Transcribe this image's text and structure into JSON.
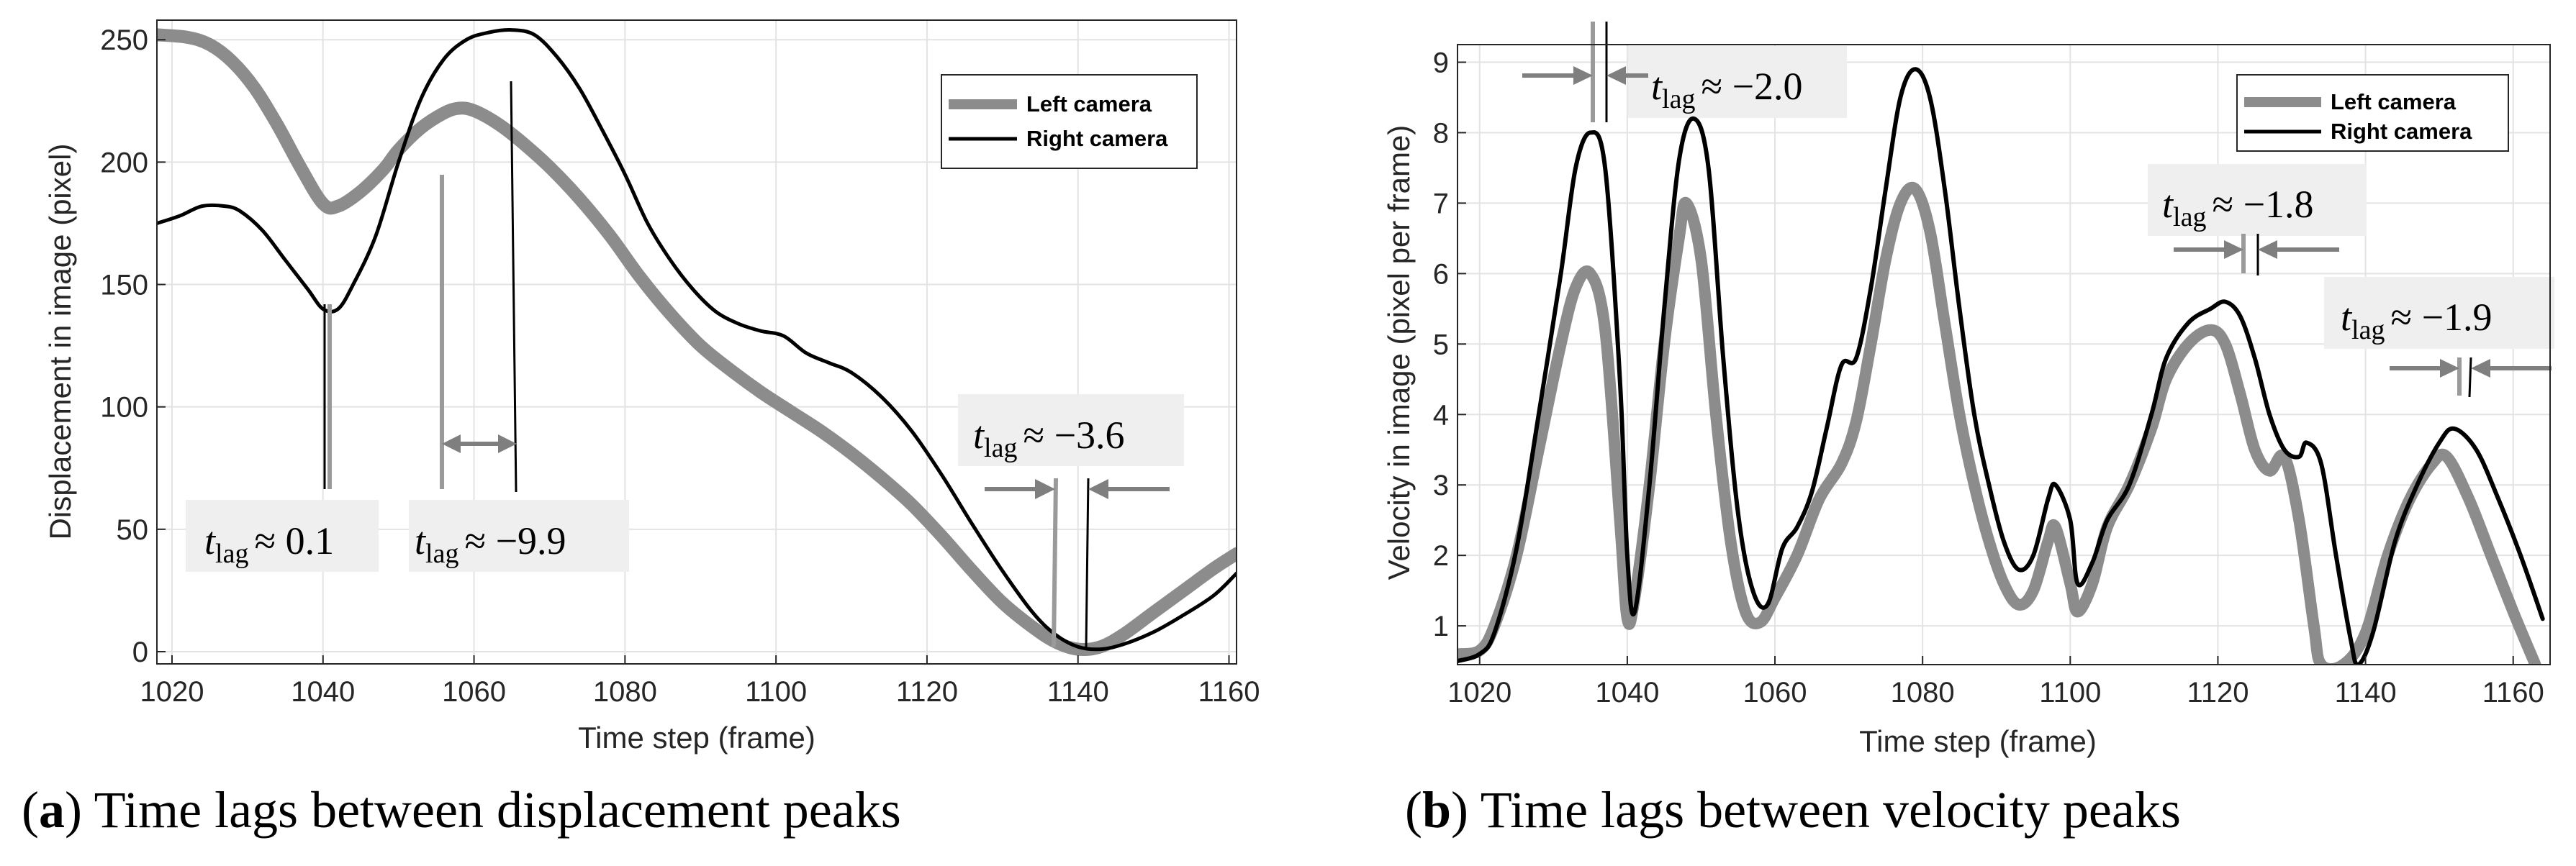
{
  "chart_data": [
    {
      "id": "a",
      "type": "line",
      "title": "",
      "caption": {
        "letter": "a",
        "text": "Time lags between displacement peaks"
      },
      "xlabel": "Time step (frame)",
      "ylabel": "Displacement in image (pixel)",
      "xlim": [
        1018,
        1161
      ],
      "ylim": [
        -5,
        258
      ],
      "xticks": [
        1020,
        1040,
        1060,
        1080,
        1100,
        1120,
        1140,
        1160
      ],
      "yticks": [
        0,
        50,
        100,
        150,
        200,
        250
      ],
      "grid": true,
      "legend_position": "top-right",
      "series": [
        {
          "name": "Left camera",
          "color": "#8c8c8c",
          "points": [
            [
              1018,
              252
            ],
            [
              1022,
              251
            ],
            [
              1025,
              248
            ],
            [
              1028,
              241
            ],
            [
              1031,
              230
            ],
            [
              1034,
              215
            ],
            [
              1037,
              198
            ],
            [
              1040,
              183
            ],
            [
              1042,
              182
            ],
            [
              1045,
              188
            ],
            [
              1048,
              197
            ],
            [
              1050,
              205
            ],
            [
              1053,
              214
            ],
            [
              1056,
              220
            ],
            [
              1058,
              222
            ],
            [
              1060,
              221
            ],
            [
              1063,
              216
            ],
            [
              1066,
              209
            ],
            [
              1070,
              198
            ],
            [
              1074,
              185
            ],
            [
              1078,
              170
            ],
            [
              1082,
              153
            ],
            [
              1086,
              138
            ],
            [
              1090,
              125
            ],
            [
              1094,
              115
            ],
            [
              1098,
              106
            ],
            [
              1102,
              98
            ],
            [
              1106,
              90
            ],
            [
              1110,
              81
            ],
            [
              1114,
              71
            ],
            [
              1118,
              60
            ],
            [
              1122,
              47
            ],
            [
              1126,
              33
            ],
            [
              1130,
              20
            ],
            [
              1134,
              10
            ],
            [
              1137,
              4
            ],
            [
              1140,
              1
            ],
            [
              1143,
              2
            ],
            [
              1146,
              7
            ],
            [
              1150,
              16
            ],
            [
              1154,
              25
            ],
            [
              1158,
              34
            ],
            [
              1161,
              40
            ]
          ]
        },
        {
          "name": "Right camera",
          "color": "#000000",
          "points": [
            [
              1018,
              175
            ],
            [
              1021,
              178
            ],
            [
              1024,
              182
            ],
            [
              1027,
              182
            ],
            [
              1029,
              180
            ],
            [
              1032,
              172
            ],
            [
              1035,
              160
            ],
            [
              1038,
              148
            ],
            [
              1040,
              140
            ],
            [
              1042,
              140
            ],
            [
              1044,
              150
            ],
            [
              1047,
              170
            ],
            [
              1050,
              200
            ],
            [
              1053,
              226
            ],
            [
              1056,
              242
            ],
            [
              1059,
              250
            ],
            [
              1062,
              253
            ],
            [
              1065,
              254
            ],
            [
              1068,
              252
            ],
            [
              1071,
              243
            ],
            [
              1074,
              230
            ],
            [
              1077,
              213
            ],
            [
              1080,
              195
            ],
            [
              1083,
              175
            ],
            [
              1086,
              160
            ],
            [
              1089,
              148
            ],
            [
              1092,
              139
            ],
            [
              1095,
              134
            ],
            [
              1098,
              131
            ],
            [
              1101,
              129
            ],
            [
              1104,
              122
            ],
            [
              1107,
              118
            ],
            [
              1110,
              114
            ],
            [
              1114,
              104
            ],
            [
              1118,
              90
            ],
            [
              1122,
              72
            ],
            [
              1126,
              52
            ],
            [
              1130,
              33
            ],
            [
              1134,
              16
            ],
            [
              1137,
              7
            ],
            [
              1140,
              2
            ],
            [
              1143,
              1
            ],
            [
              1146,
              3
            ],
            [
              1150,
              8
            ],
            [
              1154,
              15
            ],
            [
              1158,
              23
            ],
            [
              1161,
              32
            ]
          ]
        }
      ],
      "annotations": [
        {
          "label": "≈ 0.1",
          "sub": "lag"
        },
        {
          "label": "≈ −9.9",
          "sub": "lag"
        },
        {
          "label": "≈ −3.6",
          "sub": "lag"
        }
      ]
    },
    {
      "id": "b",
      "type": "line",
      "title": "",
      "caption": {
        "letter": "b",
        "text": "Time lags between velocity peaks"
      },
      "xlabel": "Time step (frame)",
      "ylabel": "Velocity in image (pixel per frame)",
      "xlim": [
        1017,
        1165
      ],
      "ylim": [
        0.45,
        9.25
      ],
      "xticks": [
        1020,
        1040,
        1060,
        1080,
        1100,
        1120,
        1140,
        1160
      ],
      "yticks": [
        1,
        2,
        3,
        4,
        5,
        6,
        7,
        8,
        9
      ],
      "grid": true,
      "legend_position": "top-right",
      "series": [
        {
          "name": "Left camera",
          "color": "#8c8c8c",
          "points": [
            [
              1017,
              0.6
            ],
            [
              1020,
              0.65
            ],
            [
              1022,
              1.0
            ],
            [
              1025,
              2.0
            ],
            [
              1028,
              3.5
            ],
            [
              1031,
              5.0
            ],
            [
              1033,
              5.8
            ],
            [
              1035,
              6.0
            ],
            [
              1037,
              5.2
            ],
            [
              1039,
              2.5
            ],
            [
              1040,
              1.1
            ],
            [
              1041,
              1.4
            ],
            [
              1043,
              3.0
            ],
            [
              1045,
              5.0
            ],
            [
              1047,
              6.5
            ],
            [
              1048,
              7.0
            ],
            [
              1050,
              6.2
            ],
            [
              1052,
              4.0
            ],
            [
              1054,
              2.2
            ],
            [
              1056,
              1.2
            ],
            [
              1058,
              1.05
            ],
            [
              1060,
              1.4
            ],
            [
              1063,
              2.0
            ],
            [
              1066,
              2.8
            ],
            [
              1069,
              3.3
            ],
            [
              1071,
              3.9
            ],
            [
              1073,
              5.0
            ],
            [
              1075,
              6.2
            ],
            [
              1077,
              7.0
            ],
            [
              1079,
              7.2
            ],
            [
              1081,
              6.6
            ],
            [
              1083,
              5.3
            ],
            [
              1085,
              4.0
            ],
            [
              1087,
              3.0
            ],
            [
              1089,
              2.2
            ],
            [
              1091,
              1.6
            ],
            [
              1093,
              1.3
            ],
            [
              1095,
              1.5
            ],
            [
              1097,
              2.2
            ],
            [
              1098,
              2.4
            ],
            [
              1100,
              1.6
            ],
            [
              1101,
              1.2
            ],
            [
              1103,
              1.6
            ],
            [
              1105,
              2.4
            ],
            [
              1108,
              3.0
            ],
            [
              1111,
              3.8
            ],
            [
              1113,
              4.5
            ],
            [
              1116,
              5.0
            ],
            [
              1119,
              5.2
            ],
            [
              1121,
              5.0
            ],
            [
              1123,
              4.3
            ],
            [
              1125,
              3.5
            ],
            [
              1127,
              3.2
            ],
            [
              1129,
              3.4
            ],
            [
              1131,
              2.5
            ],
            [
              1133,
              1.0
            ],
            [
              1134,
              0.45
            ],
            [
              1137,
              0.45
            ],
            [
              1140,
              0.9
            ],
            [
              1143,
              2.0
            ],
            [
              1146,
              2.8
            ],
            [
              1149,
              3.3
            ],
            [
              1151,
              3.4
            ],
            [
              1154,
              2.8
            ],
            [
              1157,
              2.0
            ],
            [
              1160,
              1.2
            ],
            [
              1163,
              0.45
            ]
          ]
        },
        {
          "name": "Right camera",
          "color": "#000000",
          "points": [
            [
              1017,
              0.5
            ],
            [
              1020,
              0.6
            ],
            [
              1022,
              0.9
            ],
            [
              1025,
              2.1
            ],
            [
              1028,
              4.0
            ],
            [
              1031,
              6.0
            ],
            [
              1033,
              7.5
            ],
            [
              1035,
              8.0
            ],
            [
              1037,
              7.5
            ],
            [
              1039,
              4.5
            ],
            [
              1040,
              2.0
            ],
            [
              1041,
              1.2
            ],
            [
              1043,
              3.0
            ],
            [
              1045,
              5.5
            ],
            [
              1047,
              7.6
            ],
            [
              1049,
              8.2
            ],
            [
              1051,
              7.5
            ],
            [
              1053,
              4.8
            ],
            [
              1055,
              2.6
            ],
            [
              1057,
              1.5
            ],
            [
              1059,
              1.3
            ],
            [
              1061,
              2.1
            ],
            [
              1063,
              2.4
            ],
            [
              1065,
              2.9
            ],
            [
              1067,
              3.8
            ],
            [
              1069,
              4.7
            ],
            [
              1071,
              4.8
            ],
            [
              1073,
              5.8
            ],
            [
              1075,
              7.2
            ],
            [
              1077,
              8.5
            ],
            [
              1079,
              8.9
            ],
            [
              1081,
              8.5
            ],
            [
              1083,
              7.2
            ],
            [
              1085,
              5.5
            ],
            [
              1087,
              4.0
            ],
            [
              1089,
              3.0
            ],
            [
              1091,
              2.2
            ],
            [
              1093,
              1.8
            ],
            [
              1095,
              2.0
            ],
            [
              1097,
              2.8
            ],
            [
              1098,
              3.0
            ],
            [
              1100,
              2.5
            ],
            [
              1101,
              1.6
            ],
            [
              1103,
              1.9
            ],
            [
              1105,
              2.5
            ],
            [
              1108,
              3.0
            ],
            [
              1111,
              4.0
            ],
            [
              1113,
              4.8
            ],
            [
              1116,
              5.3
            ],
            [
              1119,
              5.5
            ],
            [
              1121,
              5.6
            ],
            [
              1123,
              5.4
            ],
            [
              1125,
              4.8
            ],
            [
              1127,
              4.0
            ],
            [
              1129,
              3.5
            ],
            [
              1131,
              3.4
            ],
            [
              1132,
              3.6
            ],
            [
              1134,
              3.3
            ],
            [
              1136,
              2.0
            ],
            [
              1138,
              0.8
            ],
            [
              1139,
              0.45
            ],
            [
              1141,
              0.9
            ],
            [
              1144,
              2.2
            ],
            [
              1147,
              3.0
            ],
            [
              1150,
              3.6
            ],
            [
              1152,
              3.8
            ],
            [
              1155,
              3.5
            ],
            [
              1158,
              2.8
            ],
            [
              1161,
              2.0
            ],
            [
              1164,
              1.1
            ]
          ]
        }
      ],
      "annotations": [
        {
          "label": "≈ −2.0",
          "sub": "lag"
        },
        {
          "label": "≈ −1.8",
          "sub": "lag"
        },
        {
          "label": "≈ −1.9",
          "sub": "lag"
        }
      ]
    }
  ]
}
